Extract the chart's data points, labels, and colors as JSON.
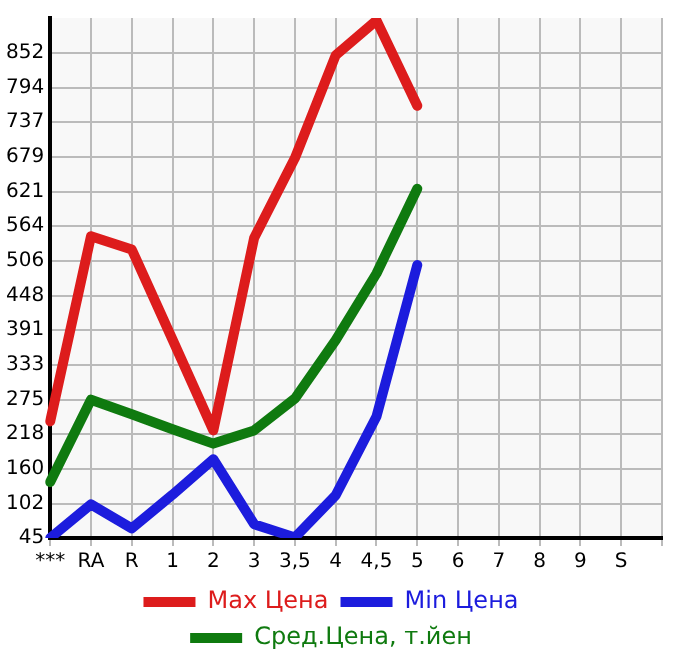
{
  "chart_data": {
    "type": "line",
    "categories": [
      "***",
      "RA",
      "R",
      "1",
      "2",
      "3",
      "3,5",
      "4",
      "4,5",
      "5",
      "6",
      "7",
      "8",
      "9",
      "S",
      null
    ],
    "series": [
      {
        "name": "Max Цена",
        "color": "#dd1c1c",
        "values": [
          239,
          547,
          525,
          375,
          224,
          544,
          677,
          848,
          906,
          764,
          null,
          null,
          null,
          null,
          null,
          null
        ]
      },
      {
        "name": "Min Цена",
        "color": "#1c1cdd",
        "values": [
          45,
          101,
          61,
          117,
          176,
          68,
          46,
          116,
          247,
          499,
          null,
          null,
          null,
          null,
          null,
          null
        ]
      },
      {
        "name": "Сред.Цена, т.йен",
        "color": "#0f7a0f",
        "values": [
          138,
          275,
          251,
          226,
          202,
          224,
          277,
          374,
          485,
          626,
          null,
          null,
          null,
          null,
          null,
          null
        ]
      }
    ],
    "ylim": [
      45,
      910
    ],
    "yticks": [
      45,
      102,
      160,
      218,
      275,
      333,
      391,
      448,
      506,
      564,
      621,
      679,
      737,
      794,
      852
    ],
    "grid": true,
    "legend": "bottom",
    "marker": "none",
    "line_style": "solid"
  }
}
